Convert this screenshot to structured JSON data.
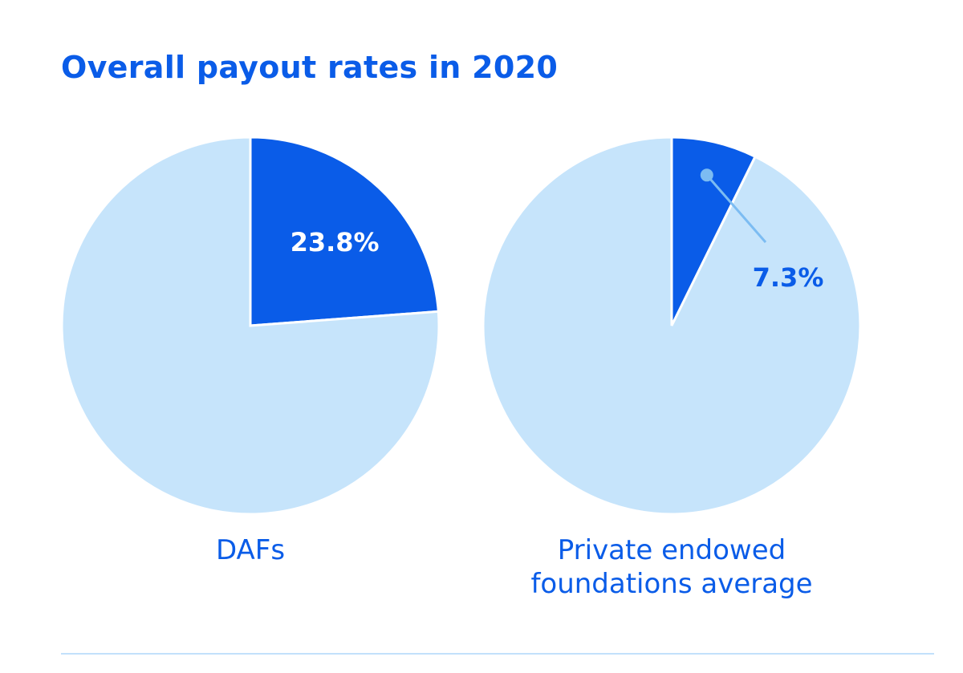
{
  "title": "Overall payout rates in 2020",
  "colors": {
    "highlight": "#0a5ce8",
    "remainder": "#c6e4fb",
    "label": "#0a5ce8",
    "leader": "#7cbcf2",
    "divider": "#c2e1fb"
  },
  "chart_data": [
    {
      "type": "pie",
      "title": "",
      "label": "DAFs",
      "slices": [
        {
          "name": "",
          "value": 23.8,
          "label": "23.8%",
          "highlight": true
        },
        {
          "name": "",
          "value": 76.2,
          "label": "",
          "highlight": false
        }
      ]
    },
    {
      "type": "pie",
      "title": "",
      "label": "Private endowed\nfoundations average",
      "label_lines": [
        "Private endowed",
        "foundations average"
      ],
      "slices": [
        {
          "name": "",
          "value": 7.3,
          "label": "7.3%",
          "highlight": true
        },
        {
          "name": "",
          "value": 92.7,
          "label": "",
          "highlight": false
        }
      ]
    }
  ]
}
